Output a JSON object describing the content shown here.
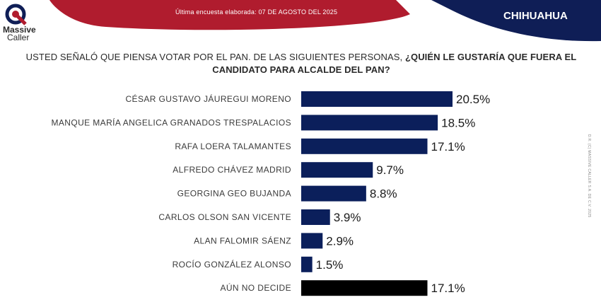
{
  "header": {
    "brand_line1": "Massive",
    "brand_line2": "Caller",
    "survey_date": "Última encuesta elaborada: 07 DE AGOSTO DEL 2025",
    "region": "CHIHUAHUA"
  },
  "question": {
    "normal": "USTED SEÑALÓ QUE PIENSA VOTAR POR EL PAN. DE LAS SIGUIENTES PERSONAS, ",
    "bold": "¿QUIÉN LE GUSTARÍA QUE FUERA EL CANDIDATO PARA ALCALDE DEL PAN?"
  },
  "side_note": "D.R. (C) MASSIVE CALLER S.A. DE C.V. 2025",
  "colors": {
    "banner_red": "#b01c2e",
    "banner_navy": "#0f1e56",
    "bar_navy": "#0b1f5b",
    "bar_black": "#000000"
  },
  "chart_data": {
    "type": "bar",
    "orientation": "horizontal",
    "categories": [
      "CÉSAR GUSTAVO JÁUREGUI MORENO",
      "MANQUE MARÍA ANGELICA GRANADOS TRESPALACIOS",
      "RAFA LOERA TALAMANTES",
      "ALFREDO CHÁVEZ MADRID",
      "GEORGINA GEO BUJANDA",
      "CARLOS OLSON SAN VICENTE",
      "ALAN FALOMIR SÁENZ",
      "ROCÍO GONZÁLEZ ALONSO",
      "AÚN NO DECIDE"
    ],
    "values": [
      20.5,
      18.5,
      17.1,
      9.7,
      8.8,
      3.9,
      2.9,
      1.5,
      17.1
    ],
    "value_labels": [
      "20.5%",
      "18.5%",
      "17.1%",
      "9.7%",
      "8.8%",
      "3.9%",
      "2.9%",
      "1.5%",
      "17.1%"
    ],
    "highlight_last": true,
    "xlim": [
      0,
      20.5
    ],
    "unit": "%"
  }
}
